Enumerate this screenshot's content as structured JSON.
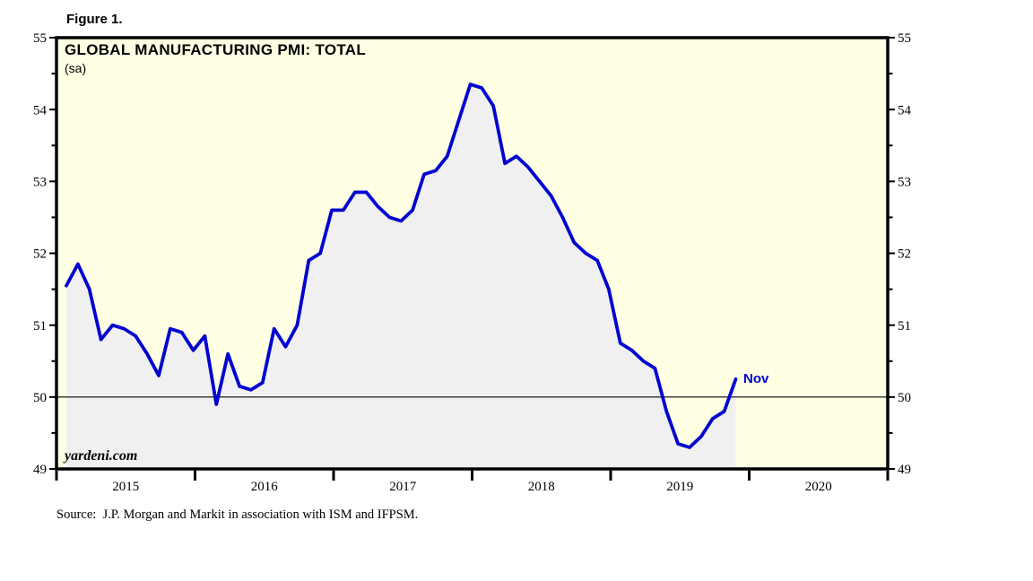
{
  "figure_label": "Figure 1.",
  "source_line": "Source:  J.P. Morgan and Markit in association with ISM and IFPSM.",
  "colors": {
    "page_bg": "#FFFFFF",
    "plot_bg": "#FFFFE4",
    "area_fill": "#F0F0F1",
    "line": "#0202D0",
    "annotation_text": "#0202D0",
    "axis": "#000000"
  },
  "chart_data": {
    "type": "area",
    "title": "GLOBAL MANUFACTURING PMI: TOTAL",
    "subtitle": "(sa)",
    "watermark": "yardeni.com",
    "annotation": {
      "text": "Nov",
      "month": "2019-11",
      "value": 50.25
    },
    "baseline": 50,
    "frequency": "monthly",
    "months": [
      "2015-01",
      "2015-02",
      "2015-03",
      "2015-04",
      "2015-05",
      "2015-06",
      "2015-07",
      "2015-08",
      "2015-09",
      "2015-10",
      "2015-11",
      "2015-12",
      "2016-01",
      "2016-02",
      "2016-03",
      "2016-04",
      "2016-05",
      "2016-06",
      "2016-07",
      "2016-08",
      "2016-09",
      "2016-10",
      "2016-11",
      "2016-12",
      "2017-01",
      "2017-02",
      "2017-03",
      "2017-04",
      "2017-05",
      "2017-06",
      "2017-07",
      "2017-08",
      "2017-09",
      "2017-10",
      "2017-11",
      "2017-12",
      "2018-01",
      "2018-02",
      "2018-03",
      "2018-04",
      "2018-05",
      "2018-06",
      "2018-07",
      "2018-08",
      "2018-09",
      "2018-10",
      "2018-11",
      "2018-12",
      "2019-01",
      "2019-02",
      "2019-03",
      "2019-04",
      "2019-05",
      "2019-06",
      "2019-07",
      "2019-08",
      "2019-09",
      "2019-10",
      "2019-11"
    ],
    "values": [
      51.55,
      51.85,
      51.5,
      50.8,
      51.0,
      50.95,
      50.85,
      50.6,
      50.3,
      50.95,
      50.9,
      50.65,
      50.85,
      49.9,
      50.6,
      50.15,
      50.1,
      50.2,
      50.95,
      50.7,
      51.0,
      51.9,
      52.0,
      52.6,
      52.6,
      52.85,
      52.85,
      52.65,
      52.5,
      52.45,
      52.6,
      53.1,
      53.15,
      53.35,
      53.85,
      54.35,
      54.3,
      54.05,
      53.25,
      53.35,
      53.2,
      53.0,
      52.8,
      52.5,
      52.15,
      52.0,
      51.9,
      51.5,
      50.75,
      50.65,
      50.5,
      50.4,
      49.8,
      49.35,
      49.3,
      49.45,
      49.7,
      49.8,
      50.25
    ],
    "y_axis": {
      "min": 49,
      "max": 55,
      "labeled_tick_step": 1,
      "minor_tick_step": 0.5,
      "tick_labels": [
        "49",
        "50",
        "51",
        "52",
        "53",
        "54",
        "55"
      ],
      "labels_on_both_sides": true,
      "grid": "off"
    },
    "x_axis": {
      "span_years": [
        2015,
        2021
      ],
      "year_labels": [
        "2015",
        "2016",
        "2017",
        "2018",
        "2019",
        "2020"
      ]
    }
  }
}
